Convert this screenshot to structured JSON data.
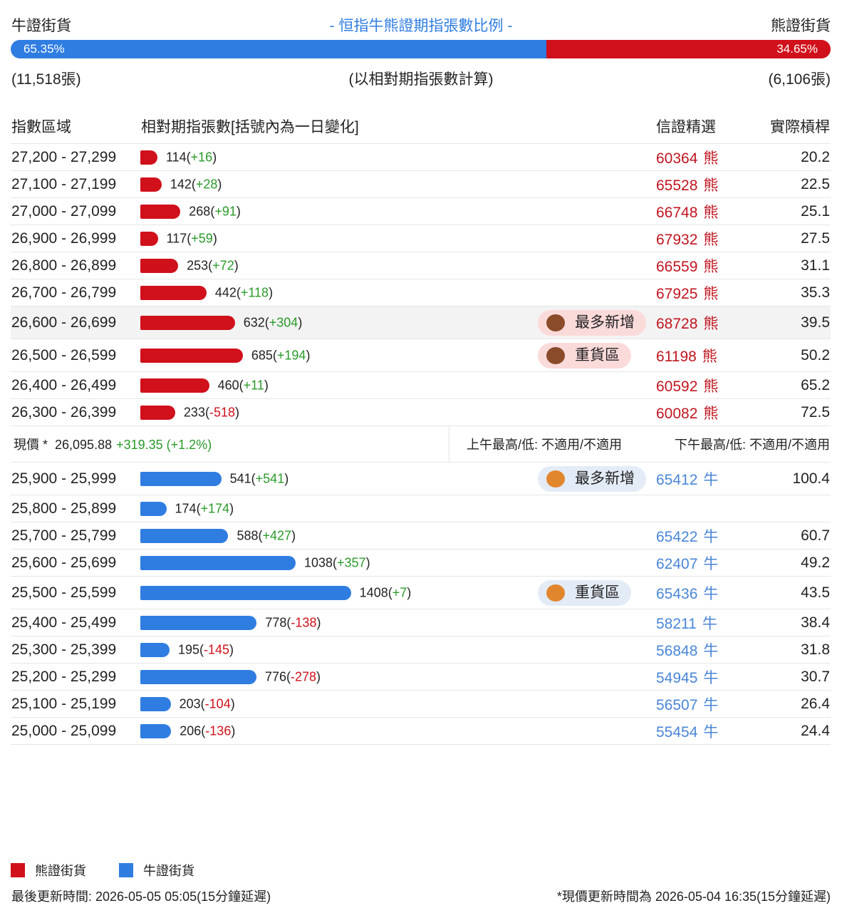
{
  "header": {
    "left_label": "牛證街貨",
    "title": "- 恒指牛熊證期指張數比例 -",
    "right_label": "熊證街貨"
  },
  "ratio": {
    "bull_pct": 65.35,
    "bull_label": "65.35%",
    "bear_pct": 34.65,
    "bear_label": "34.65%",
    "bull_count": "(11,518張)",
    "note": "(以相對期指張數計算)",
    "bear_count": "(6,106張)"
  },
  "columns": [
    "指數區域",
    "相對期指張數[括號內為一日變化]",
    "信證精選",
    "實際槓桿"
  ],
  "bear_section": {
    "kind": "熊",
    "rows": [
      {
        "range": "27,200 - 27,299",
        "count": 114,
        "change": "+16",
        "code": "60364",
        "leverage": 20.2
      },
      {
        "range": "27,100 - 27,199",
        "count": 142,
        "change": "+28",
        "code": "65528",
        "leverage": 22.5
      },
      {
        "range": "27,000 - 27,099",
        "count": 268,
        "change": "+91",
        "code": "66748",
        "leverage": 25.1
      },
      {
        "range": "26,900 - 26,999",
        "count": 117,
        "change": "+59",
        "code": "67932",
        "leverage": 27.5
      },
      {
        "range": "26,800 - 26,899",
        "count": 253,
        "change": "+72",
        "code": "66559",
        "leverage": 31.1
      },
      {
        "range": "26,700 - 26,799",
        "count": 442,
        "change": "+118",
        "code": "67925",
        "leverage": 35.3
      },
      {
        "range": "26,600 - 26,699",
        "count": 632,
        "change": "+304",
        "tag": "最多新增",
        "code": "68728",
        "leverage": 39.5
      },
      {
        "range": "26,500 - 26,599",
        "count": 685,
        "change": "+194",
        "tag": "重貨區",
        "code": "61198",
        "leverage": 50.2
      },
      {
        "range": "26,400 - 26,499",
        "count": 460,
        "change": "+11",
        "code": "60592",
        "leverage": 65.2
      },
      {
        "range": "26,300 - 26,399",
        "count": 233,
        "change": "-518",
        "code": "60082",
        "leverage": 72.5
      }
    ]
  },
  "current": {
    "label": "現價 *",
    "price": "26,095.88",
    "change": "+319.35 (+1.2%)",
    "am": "上午最高/低: 不適用/不適用",
    "pm": "下午最高/低: 不適用/不適用"
  },
  "bull_section": {
    "kind": "牛",
    "rows": [
      {
        "range": "25,900 - 25,999",
        "count": 541,
        "change": "+541",
        "tag": "最多新增",
        "code": "65412",
        "leverage": 100.4
      },
      {
        "range": "25,800 - 25,899",
        "count": 174,
        "change": "+174"
      },
      {
        "range": "25,700 - 25,799",
        "count": 588,
        "change": "+427",
        "code": "65422",
        "leverage": 60.7
      },
      {
        "range": "25,600 - 25,699",
        "count": 1038,
        "change": "+357",
        "code": "62407",
        "leverage": 49.2
      },
      {
        "range": "25,500 - 25,599",
        "count": 1408,
        "change": "+7",
        "tag": "重貨區",
        "code": "65436",
        "leverage": 43.5
      },
      {
        "range": "25,400 - 25,499",
        "count": 778,
        "change": "-138",
        "code": "58211",
        "leverage": 38.4
      },
      {
        "range": "25,300 - 25,399",
        "count": 195,
        "change": "-145",
        "code": "56848",
        "leverage": 31.8
      },
      {
        "range": "25,200 - 25,299",
        "count": 776,
        "change": "-278",
        "code": "54945",
        "leverage": 30.7
      },
      {
        "range": "25,100 - 25,199",
        "count": 203,
        "change": "-104",
        "code": "56507",
        "leverage": 26.4
      },
      {
        "range": "25,000 - 25,099",
        "count": 206,
        "change": "-136",
        "code": "55454",
        "leverage": 24.4
      }
    ]
  },
  "legend": [
    "熊證街貨",
    "牛證街貨"
  ],
  "footer": {
    "left": "最後更新時間: 2026-05-05 05:05(15分鐘延遲)",
    "right": "*現價更新時間為 2026-05-04 16:35(15分鐘延遲)"
  }
}
